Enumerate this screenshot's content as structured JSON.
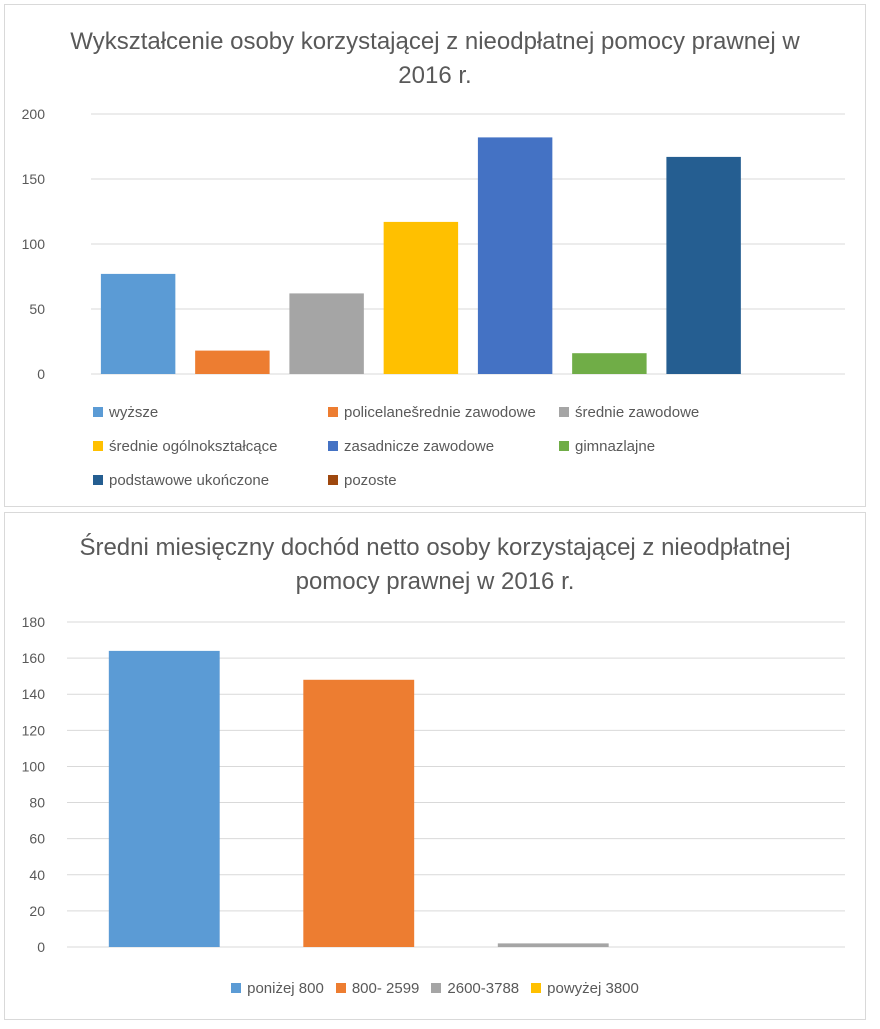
{
  "chart_data": [
    {
      "type": "bar",
      "title": "Wykształcenie osoby korzystającej z nieodpłatnej pomocy prawnej w 2016 r.",
      "xlabel": "",
      "ylabel": "",
      "ylim": [
        0,
        200
      ],
      "yticks": [
        "0",
        "50",
        "100",
        "150",
        "200"
      ],
      "grid": true,
      "legend_position": "bottom",
      "categories": [
        "wyższe",
        "policelanešrednie zawodowe",
        "średnie zawodowe",
        "średnie ogólnokształcące",
        "zasadnicze zawodowe",
        "gimnazlajne",
        "podstawowe ukończone",
        "pozoste"
      ],
      "values": [
        77,
        18,
        62,
        117,
        182,
        16,
        167,
        0
      ],
      "colors": [
        "#5b9bd5",
        "#ed7d31",
        "#a5a5a5",
        "#ffc000",
        "#4472c4",
        "#70ad47",
        "#255e91",
        "#9e480e"
      ]
    },
    {
      "type": "bar",
      "title": "Średni miesięczny dochód netto osoby korzystającej  z nieodpłatnej pomocy prawnej w 2016 r.",
      "xlabel": "",
      "ylabel": "",
      "ylim": [
        0,
        180
      ],
      "yticks": [
        "0",
        "20",
        "40",
        "60",
        "80",
        "100",
        "120",
        "140",
        "160",
        "180"
      ],
      "grid": true,
      "legend_position": "bottom",
      "categories": [
        "poniżej 800",
        "800- 2599",
        "2600-3788",
        "powyżej 3800"
      ],
      "values": [
        164,
        148,
        2,
        0
      ],
      "colors": [
        "#5b9bd5",
        "#ed7d31",
        "#a5a5a5",
        "#ffc000"
      ]
    }
  ]
}
